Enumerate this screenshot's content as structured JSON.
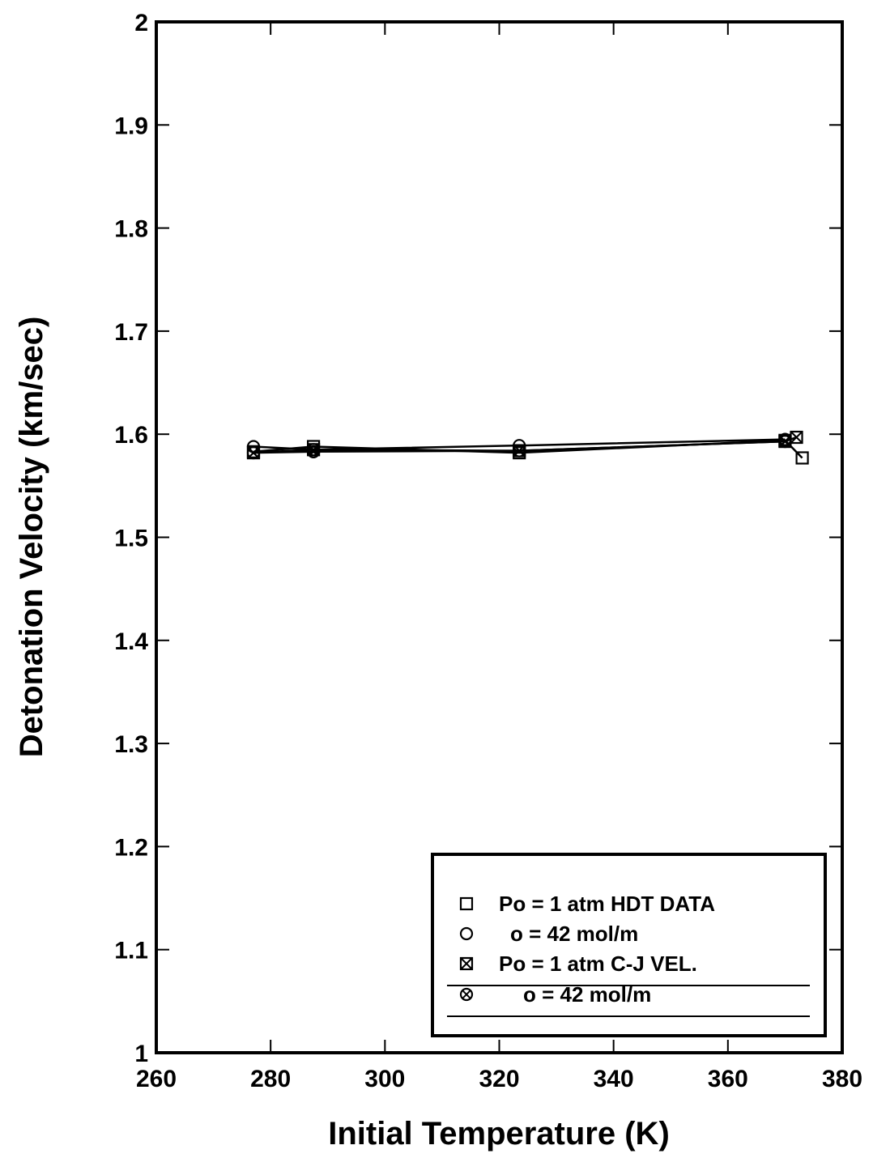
{
  "chart_data": {
    "type": "line",
    "xlabel": "Initial Temperature (K)",
    "ylabel": "Detonation Velocity (km/sec)",
    "xlim": [
      260,
      380
    ],
    "ylim": [
      1,
      2
    ],
    "xticks": [
      "260",
      "280",
      "300",
      "320",
      "340",
      "360",
      "380"
    ],
    "yticks": [
      "1",
      "1.1",
      "1.2",
      "1.3",
      "1.4",
      "1.5",
      "1.6",
      "1.7",
      "1.8",
      "1.9",
      "2"
    ],
    "grid": false,
    "legend_position": "bottom-right",
    "series": [
      {
        "name": "Po = 1 atm HDT DATA",
        "marker": "square",
        "points": [
          [
            277,
            1.583
          ],
          [
            287.5,
            1.588
          ],
          [
            323.5,
            1.582
          ],
          [
            370,
            1.594
          ],
          [
            373,
            1.577
          ]
        ]
      },
      {
        "name": "o = 42 mol/m",
        "marker": "circle",
        "points": [
          [
            277,
            1.588
          ],
          [
            287.5,
            1.585
          ],
          [
            323.5,
            1.589
          ],
          [
            370,
            1.595
          ]
        ]
      },
      {
        "name": "Po = 1 atm C-J VEL.",
        "marker": "square-x",
        "points": [
          [
            277,
            1.582
          ],
          [
            287.5,
            1.585
          ],
          [
            323.5,
            1.584
          ],
          [
            370,
            1.593
          ],
          [
            372,
            1.597
          ]
        ]
      },
      {
        "name": "o = 42 mol/m",
        "marker": "circle-x",
        "points": [
          [
            277,
            1.582
          ],
          [
            287.5,
            1.583
          ],
          [
            323.5,
            1.584
          ],
          [
            370,
            1.593
          ]
        ]
      }
    ]
  }
}
